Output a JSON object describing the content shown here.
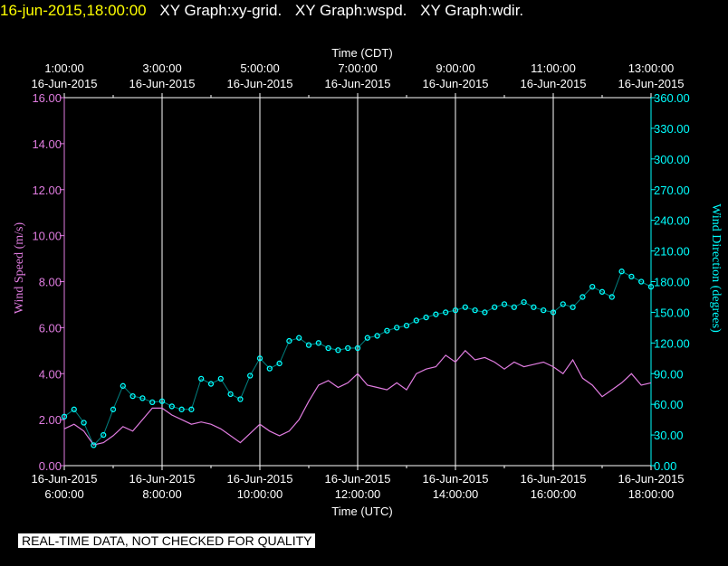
{
  "header": {
    "timestamp": "16-jun-2015,18:00:00",
    "titles": [
      "XY Graph:xy-grid.",
      "XY Graph:wspd.",
      "XY Graph:wdir."
    ]
  },
  "qc_notice": "REAL-TIME DATA, NOT CHECKED FOR QUALITY",
  "colors": {
    "speed": "#e07ce0",
    "direction": "#00ffff",
    "grid": "#ffffff",
    "header_time": "#ffff00"
  },
  "chart_data": {
    "type": "line",
    "x_top_label": "Time (CDT)",
    "x_bottom_label": "Time (UTC)",
    "y_left_label": "Wind Speed (m/s)",
    "y_right_label": "Wind Direction (degrees)",
    "x_range_utc_hours": [
      6,
      18
    ],
    "y_left_range": [
      0,
      16
    ],
    "y_right_range": [
      0,
      360
    ],
    "grid": "vertical",
    "top_ticks": [
      {
        "time": "1:00:00",
        "date": "16-Jun-2015",
        "utc_hour": 6
      },
      {
        "time": "3:00:00",
        "date": "16-Jun-2015",
        "utc_hour": 8
      },
      {
        "time": "5:00:00",
        "date": "16-Jun-2015",
        "utc_hour": 10
      },
      {
        "time": "7:00:00",
        "date": "16-Jun-2015",
        "utc_hour": 12
      },
      {
        "time": "9:00:00",
        "date": "16-Jun-2015",
        "utc_hour": 14
      },
      {
        "time": "11:00:00",
        "date": "16-Jun-2015",
        "utc_hour": 16
      },
      {
        "time": "13:00:00",
        "date": "16-Jun-2015",
        "utc_hour": 18
      }
    ],
    "bottom_ticks": [
      {
        "date": "16-Jun-2015",
        "time": "6:00:00",
        "utc_hour": 6
      },
      {
        "date": "16-Jun-2015",
        "time": "8:00:00",
        "utc_hour": 8
      },
      {
        "date": "16-Jun-2015",
        "time": "10:00:00",
        "utc_hour": 10
      },
      {
        "date": "16-Jun-2015",
        "time": "12:00:00",
        "utc_hour": 12
      },
      {
        "date": "16-Jun-2015",
        "time": "14:00:00",
        "utc_hour": 14
      },
      {
        "date": "16-Jun-2015",
        "time": "16:00:00",
        "utc_hour": 16
      },
      {
        "date": "16-Jun-2015",
        "time": "18:00:00",
        "utc_hour": 18
      }
    ],
    "y_left_ticks": [
      "0.00",
      "2.00",
      "4.00",
      "6.00",
      "8.00",
      "10.00",
      "12.00",
      "14.00",
      "16.00"
    ],
    "y_right_ticks": [
      "0.00",
      "30.00",
      "60.00",
      "90.00",
      "120.00",
      "150.00",
      "180.00",
      "210.00",
      "240.00",
      "270.00",
      "300.00",
      "330.00",
      "360.00"
    ],
    "series": [
      {
        "name": "wspd",
        "axis": "left",
        "style": "line",
        "x": [
          6.0,
          6.2,
          6.4,
          6.6,
          6.8,
          7.0,
          7.2,
          7.4,
          7.6,
          7.8,
          8.0,
          8.2,
          8.4,
          8.6,
          8.8,
          9.0,
          9.2,
          9.4,
          9.6,
          9.8,
          10.0,
          10.2,
          10.4,
          10.6,
          10.8,
          11.0,
          11.2,
          11.4,
          11.6,
          11.8,
          12.0,
          12.2,
          12.4,
          12.6,
          12.8,
          13.0,
          13.2,
          13.4,
          13.6,
          13.8,
          14.0,
          14.2,
          14.4,
          14.6,
          14.8,
          15.0,
          15.2,
          15.4,
          15.6,
          15.8,
          16.0,
          16.2,
          16.4,
          16.6,
          16.8,
          17.0,
          17.2,
          17.4,
          17.6,
          17.8,
          18.0
        ],
        "values": [
          1.6,
          1.8,
          1.5,
          0.9,
          1.0,
          1.3,
          1.7,
          1.5,
          2.0,
          2.5,
          2.5,
          2.2,
          2.0,
          1.8,
          1.9,
          1.8,
          1.6,
          1.3,
          1.0,
          1.4,
          1.8,
          1.5,
          1.3,
          1.5,
          2.0,
          2.8,
          3.5,
          3.7,
          3.4,
          3.6,
          4.0,
          3.5,
          3.4,
          3.3,
          3.6,
          3.3,
          4.0,
          4.2,
          4.3,
          4.8,
          4.5,
          5.0,
          4.6,
          4.7,
          4.5,
          4.2,
          4.5,
          4.3,
          4.4,
          4.5,
          4.3,
          4.0,
          4.6,
          3.8,
          3.5,
          3.0,
          3.3,
          3.6,
          4.0,
          3.5,
          3.6
        ]
      },
      {
        "name": "wdir",
        "axis": "right",
        "style": "points",
        "x": [
          6.0,
          6.2,
          6.4,
          6.6,
          6.8,
          7.0,
          7.2,
          7.4,
          7.6,
          7.8,
          8.0,
          8.2,
          8.4,
          8.6,
          8.8,
          9.0,
          9.2,
          9.4,
          9.6,
          9.8,
          10.0,
          10.2,
          10.4,
          10.6,
          10.8,
          11.0,
          11.2,
          11.4,
          11.6,
          11.8,
          12.0,
          12.2,
          12.4,
          12.6,
          12.8,
          13.0,
          13.2,
          13.4,
          13.6,
          13.8,
          14.0,
          14.2,
          14.4,
          14.6,
          14.8,
          15.0,
          15.2,
          15.4,
          15.6,
          15.8,
          16.0,
          16.2,
          16.4,
          16.6,
          16.8,
          17.0,
          17.2,
          17.4,
          17.6,
          17.8,
          18.0
        ],
        "values": [
          48,
          55,
          42,
          20,
          30,
          55,
          78,
          68,
          66,
          62,
          63,
          58,
          55,
          55,
          85,
          80,
          85,
          70,
          65,
          88,
          105,
          95,
          100,
          122,
          125,
          118,
          120,
          115,
          113,
          115,
          115,
          125,
          127,
          132,
          135,
          137,
          142,
          145,
          148,
          150,
          152,
          155,
          152,
          150,
          155,
          158,
          155,
          160,
          155,
          152,
          150,
          158,
          155,
          165,
          175,
          170,
          165,
          190,
          185,
          180,
          175
        ]
      }
    ]
  }
}
